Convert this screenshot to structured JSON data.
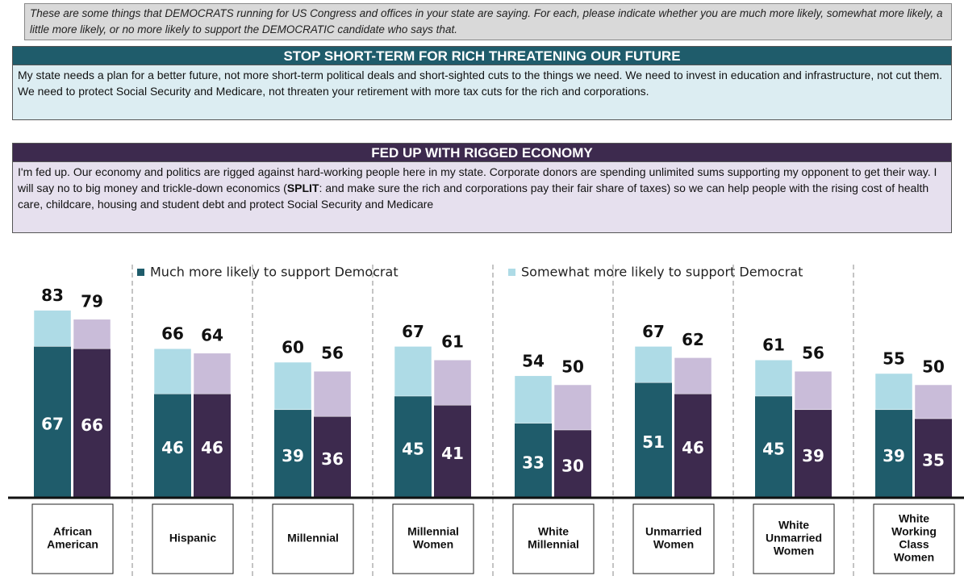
{
  "chart_data": {
    "type": "bar",
    "stacked": true,
    "intro": "These are some things that DEMOCRATS running for US Congress and offices in your state are saying. For each, please indicate whether you are much more likely, somewhat more likely, a little more likely, or no more likely to support the DEMOCRATIC candidate who says that.",
    "legend": [
      {
        "name": "Much more likely to support Democrat",
        "color": "#1f5c6b"
      },
      {
        "name": "Somewhat more likely to support Democrat",
        "color": "#aedbe6"
      }
    ],
    "categories": [
      [
        "African",
        "American"
      ],
      [
        "Hispanic"
      ],
      [
        "Millennial"
      ],
      [
        "Millennial",
        "Women"
      ],
      [
        "White",
        "Millennial"
      ],
      [
        "Unmarried",
        "Women"
      ],
      [
        "White",
        "Unmarried",
        "Women"
      ],
      [
        "White",
        "Working",
        "Class",
        "Women"
      ]
    ],
    "messages": [
      {
        "title": "STOP SHORT-TERM FOR RICH THREATENING OUR FUTURE",
        "text": [
          "My state needs a plan for a better future, not more short-term political deals and short-sighted cuts to the things we need. We need to invest in education and infrastructure, not cut them. We need to protect Social Security and Medicare, not threaten your retirement with more tax cuts for the rich and corporations."
        ],
        "header_color": "#1f5c6b",
        "box_color": "#dcedf2",
        "much_color": "#1f5c6b",
        "somewhat_color": "#aedbe6",
        "much": [
          67,
          46,
          39,
          45,
          33,
          51,
          45,
          39
        ],
        "somewhat": [
          16,
          20,
          21,
          22,
          21,
          16,
          16,
          16
        ],
        "totals": [
          83,
          66,
          60,
          67,
          54,
          67,
          61,
          55
        ]
      },
      {
        "title": "FED UP WITH RIGGED ECONOMY",
        "text": [
          "I'm fed up. Our economy and politics are rigged against hard-working people here in my state. Corporate donors are spending unlimited sums supporting my opponent to get their way. I will say no to big money and trickle-down economics (",
          "SPLIT",
          ": and make sure the rich and corporations pay their fair share of taxes) so we can help people with the rising cost of health care, childcare, housing and student debt and protect Social Security and Medicare"
        ],
        "header_color": "#3d2a4e",
        "box_color": "#e6e0ee",
        "much_color": "#3d2a4e",
        "somewhat_color": "#c9bcd9",
        "much": [
          66,
          46,
          36,
          41,
          30,
          46,
          39,
          35
        ],
        "somewhat": [
          13,
          18,
          20,
          20,
          20,
          16,
          17,
          15
        ],
        "totals": [
          79,
          64,
          56,
          61,
          50,
          62,
          56,
          50
        ]
      }
    ],
    "ylim": [
      0,
      100
    ]
  }
}
